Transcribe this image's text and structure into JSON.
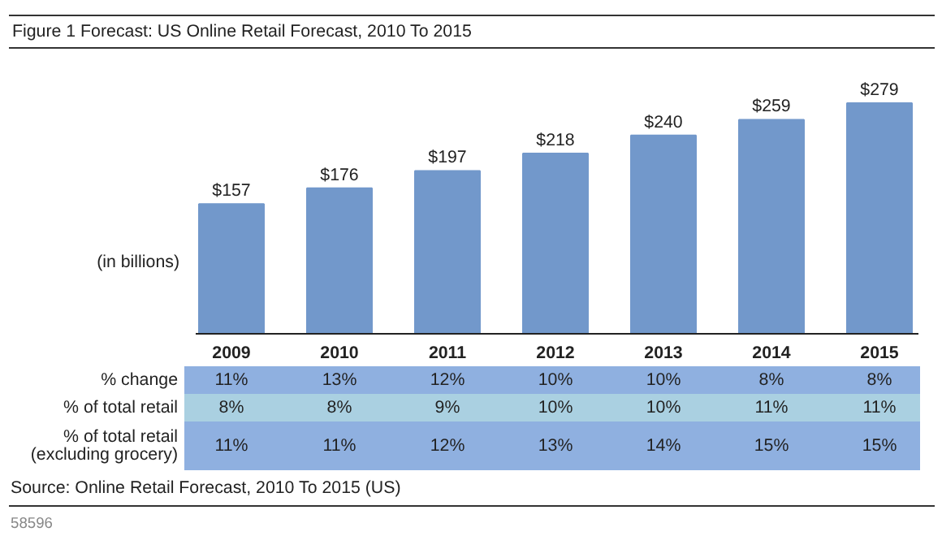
{
  "chart_data": {
    "type": "bar",
    "title": "Figure 1 Forecast: US Online Retail Forecast, 2010 To 2015",
    "ylabel": "(in billions)",
    "color": "#7298cb",
    "categories": [
      "2009",
      "2010",
      "2011",
      "2012",
      "2013",
      "2014",
      "2015"
    ],
    "values": [
      157,
      176,
      197,
      218,
      240,
      259,
      279
    ],
    "value_labels": [
      "$157",
      "$176",
      "$197",
      "$218",
      "$240",
      "$259",
      "$279"
    ],
    "annotations": [
      "% change",
      "11%",
      "13%",
      "12%",
      "10%",
      "10%",
      "8%",
      "8%",
      "% of total retail",
      "8%",
      "8%",
      "9%",
      "10%",
      "10%",
      "11%",
      "11%",
      "% of total retail\n(excluding grocery)",
      "11%",
      "11%",
      "12%",
      "13%",
      "14%",
      "15%",
      "15%",
      "Source: Online Retail Forecast, 2010 To 2015 (US)",
      "58596"
    ]
  }
}
